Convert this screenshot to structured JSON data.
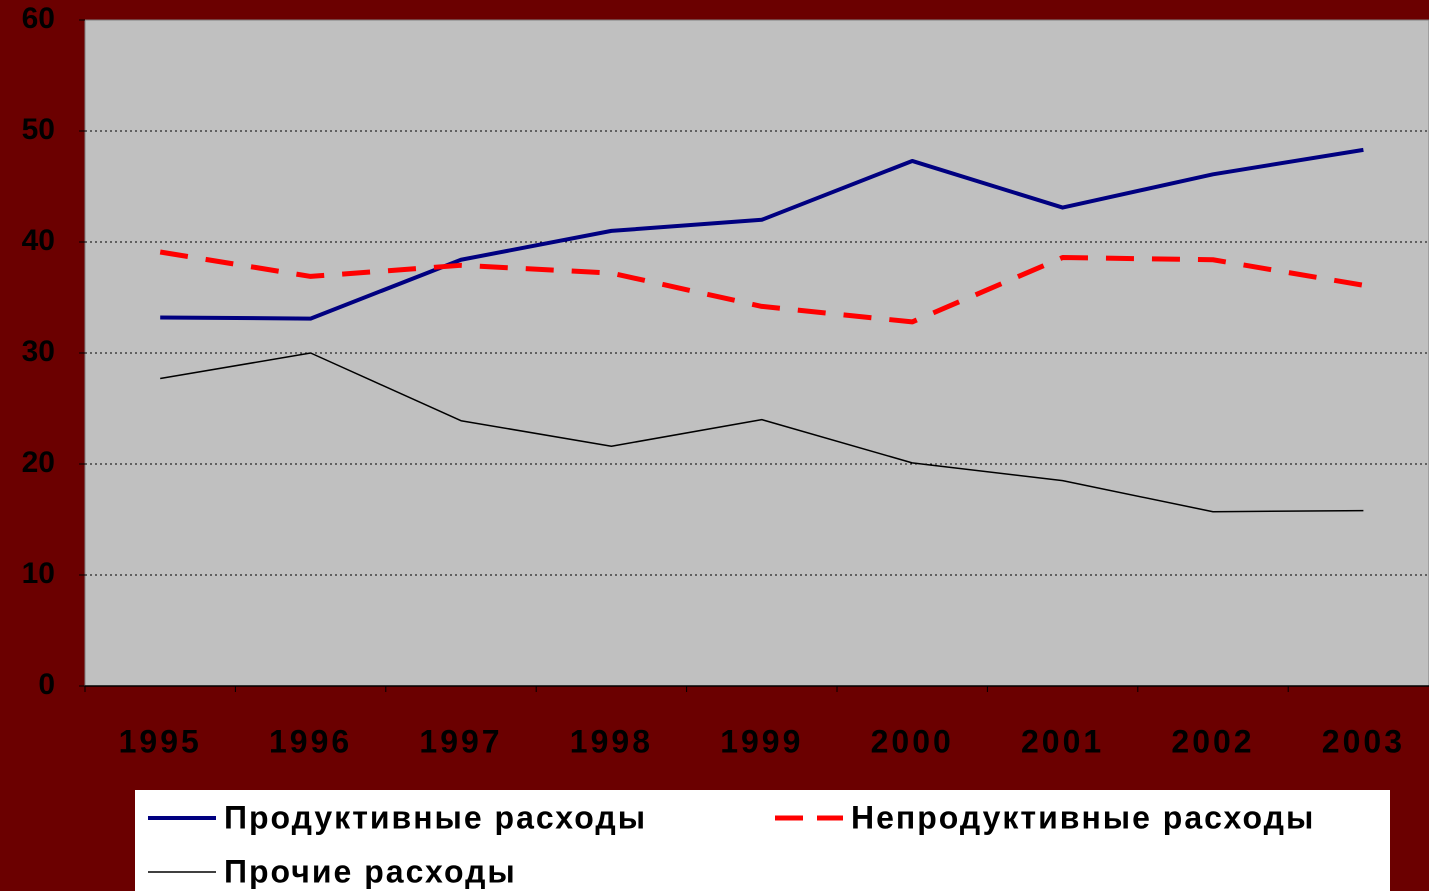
{
  "chart_data": {
    "type": "line",
    "categories": [
      "1995",
      "1996",
      "1997",
      "1998",
      "1999",
      "2000",
      "2001",
      "2002",
      "2003"
    ],
    "series": [
      {
        "name": "Продуктивные расходы",
        "color": "#000080",
        "style": "solid",
        "width": 4,
        "values": [
          33.2,
          33.1,
          38.4,
          41.0,
          42.0,
          47.3,
          43.1,
          46.1,
          48.3
        ]
      },
      {
        "name": "Непродуктивные расходы",
        "color": "#ff0000",
        "style": "dashed",
        "width": 5,
        "values": [
          39.1,
          36.9,
          37.9,
          37.2,
          34.2,
          32.8,
          38.6,
          38.4,
          36.1
        ]
      },
      {
        "name": "Прочие расходы",
        "color": "#000000",
        "style": "solid",
        "width": 1.5,
        "values": [
          27.7,
          30.0,
          23.9,
          21.6,
          24.0,
          20.1,
          18.5,
          15.7,
          15.8
        ]
      }
    ],
    "ylim": [
      0,
      60
    ],
    "yticks": [
      0,
      10,
      20,
      30,
      40,
      50,
      60
    ],
    "grid": true
  }
}
